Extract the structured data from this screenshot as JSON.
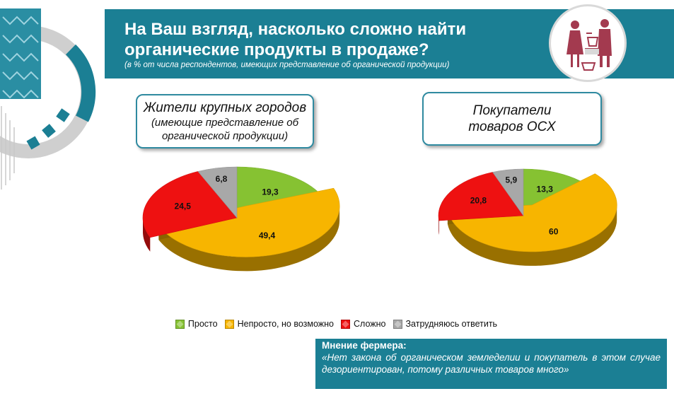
{
  "header": {
    "title": "На Ваш взгляд, насколько сложно найти органические продукты в продаже?",
    "subtitle": "(в % от числа респондентов, имеющих представление об органической продукции)",
    "background_color": "#1b7f94"
  },
  "illustration": {
    "icon": "shop-scene-icon"
  },
  "groups": [
    {
      "title_line1": "Жители крупных городов",
      "title_line2": "(имеющие представление об органической продукции)"
    },
    {
      "title_line1": "Покупатели",
      "title_line2": "товаров ОСХ"
    }
  ],
  "legend": {
    "items": [
      {
        "label": "Просто",
        "color": "#86c232"
      },
      {
        "label": "Непросто, но возможно",
        "color": "#f7b500"
      },
      {
        "label": "Сложно",
        "color": "#ee1111"
      },
      {
        "label": "Затрудняюсь ответить",
        "color": "#a8a8a8"
      }
    ]
  },
  "farmer_opinion": {
    "title": "Мнение фермера:",
    "quote": "«Нет закона об органическом земледелии и покупатель в этом случае дезориентирован, потому различных товаров много»"
  },
  "chart_data": [
    {
      "type": "pie",
      "title": "Жители крупных городов (имеющие представление об органической продукции)",
      "categories": [
        "Просто",
        "Непросто, но возможно",
        "Сложно",
        "Затрудняюсь ответить"
      ],
      "values": [
        19.3,
        49.4,
        24.5,
        6.8
      ],
      "data_labels": [
        "19,3",
        "49,4",
        "24,5",
        "6,8"
      ],
      "colors": [
        "#86c232",
        "#f7b500",
        "#ee1111",
        "#a8a8a8"
      ],
      "exploded": "Непросто, но возможно",
      "legend": "bottom"
    },
    {
      "type": "pie",
      "title": "Покупатели товаров ОСХ",
      "categories": [
        "Просто",
        "Непросто, но возможно",
        "Сложно",
        "Затрудняюсь ответить"
      ],
      "values": [
        13.3,
        60,
        20.8,
        5.9
      ],
      "data_labels": [
        "13,3",
        "60",
        "20,8",
        "5,9"
      ],
      "colors": [
        "#86c232",
        "#f7b500",
        "#ee1111",
        "#a8a8a8"
      ],
      "exploded": "Непросто, но возможно",
      "legend": "bottom"
    }
  ]
}
